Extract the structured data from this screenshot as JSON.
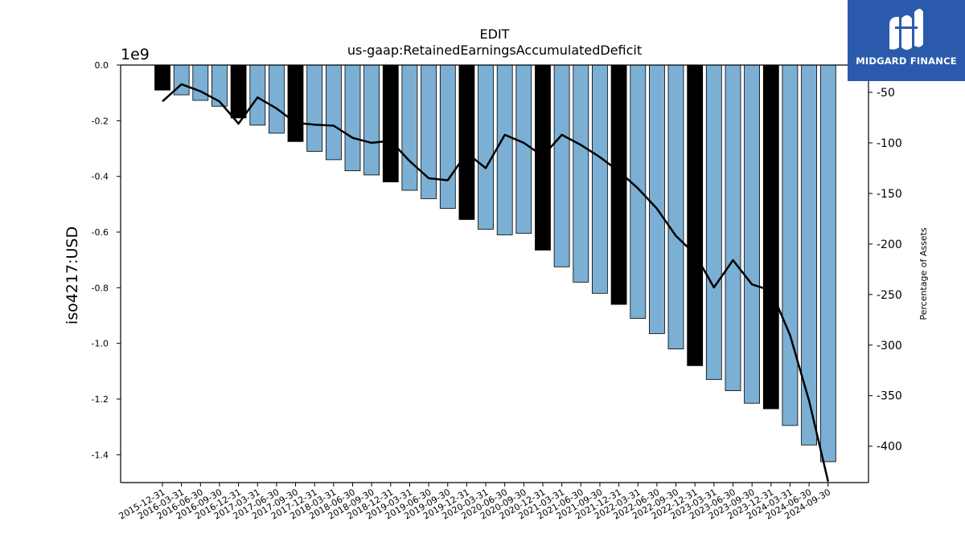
{
  "brand": {
    "name": "MIDGARD FINANCE",
    "logo_color": "#2b5aad"
  },
  "chart_data": {
    "type": "bar",
    "title": "EDIT",
    "subtitle": "us-gaap:RetainedEarningsAccumulatedDeficit",
    "ylabel": "iso4217:USD",
    "y2label": "Percentage of Assets",
    "offset_label": "1e9",
    "ylim": [
      -1.5,
      0.0
    ],
    "y2lim": [
      -436,
      -23
    ],
    "yticks": [
      0.0,
      -0.2,
      -0.4,
      -0.6,
      -0.8,
      -1.0,
      -1.2,
      -1.4
    ],
    "yticklabels": [
      "0.0",
      "-0.2",
      "-0.4",
      "-0.6",
      "-0.8",
      "-1.0",
      "-1.2",
      "-1.4"
    ],
    "y2ticks": [
      -50,
      -100,
      -150,
      -200,
      -250,
      -300,
      -350,
      -400
    ],
    "categories": [
      "2015-12-31",
      "2016-03-31",
      "2016-06-30",
      "2016-09-30",
      "2016-12-31",
      "2017-03-31",
      "2017-06-30",
      "2017-09-30",
      "2017-12-31",
      "2018-03-31",
      "2018-06-30",
      "2018-09-30",
      "2018-12-31",
      "2019-03-31",
      "2019-06-30",
      "2019-09-30",
      "2019-12-31",
      "2020-03-31",
      "2020-06-30",
      "2020-09-30",
      "2020-12-31",
      "2021-03-31",
      "2021-06-30",
      "2021-09-30",
      "2021-12-31",
      "2022-03-31",
      "2022-06-30",
      "2022-09-30",
      "2022-12-31",
      "2023-03-31",
      "2023-06-30",
      "2023-09-30",
      "2023-12-31",
      "2024-03-31",
      "2024-06-30",
      "2024-09-30"
    ],
    "series": [
      {
        "kind": "bar",
        "axis": "left",
        "values": [
          -0.09,
          -0.107,
          -0.127,
          -0.148,
          -0.19,
          -0.216,
          -0.245,
          -0.275,
          -0.31,
          -0.34,
          -0.38,
          -0.395,
          -0.42,
          -0.45,
          -0.48,
          -0.515,
          -0.555,
          -0.59,
          -0.61,
          -0.605,
          -0.665,
          -0.725,
          -0.78,
          -0.82,
          -0.86,
          -0.91,
          -0.965,
          -1.02,
          -1.08,
          -1.13,
          -1.17,
          -1.215,
          -1.235,
          -1.295,
          -1.365,
          -1.425
        ],
        "annual_color": "#000000",
        "quarter_color": "#7bafd4",
        "annual": [
          true,
          false,
          false,
          false,
          true,
          false,
          false,
          true,
          false,
          false,
          false,
          false,
          true,
          false,
          false,
          false,
          true,
          false,
          false,
          false,
          true,
          false,
          false,
          false,
          true,
          false,
          false,
          false,
          true,
          false,
          false,
          false,
          true,
          false,
          false,
          false
        ]
      },
      {
        "kind": "line",
        "axis": "right",
        "color": "#000000",
        "values": [
          -59,
          -42,
          -49,
          -59,
          -81,
          -55,
          -66,
          -80,
          -82,
          -83,
          -95,
          -100,
          -98,
          -118,
          -135,
          -137,
          -110,
          -125,
          -92,
          -100,
          -113,
          -92,
          -102,
          -114,
          -128,
          -145,
          -165,
          -192,
          -210,
          -243,
          -216,
          -240,
          -246,
          -290,
          -355,
          -435
        ]
      }
    ]
  }
}
